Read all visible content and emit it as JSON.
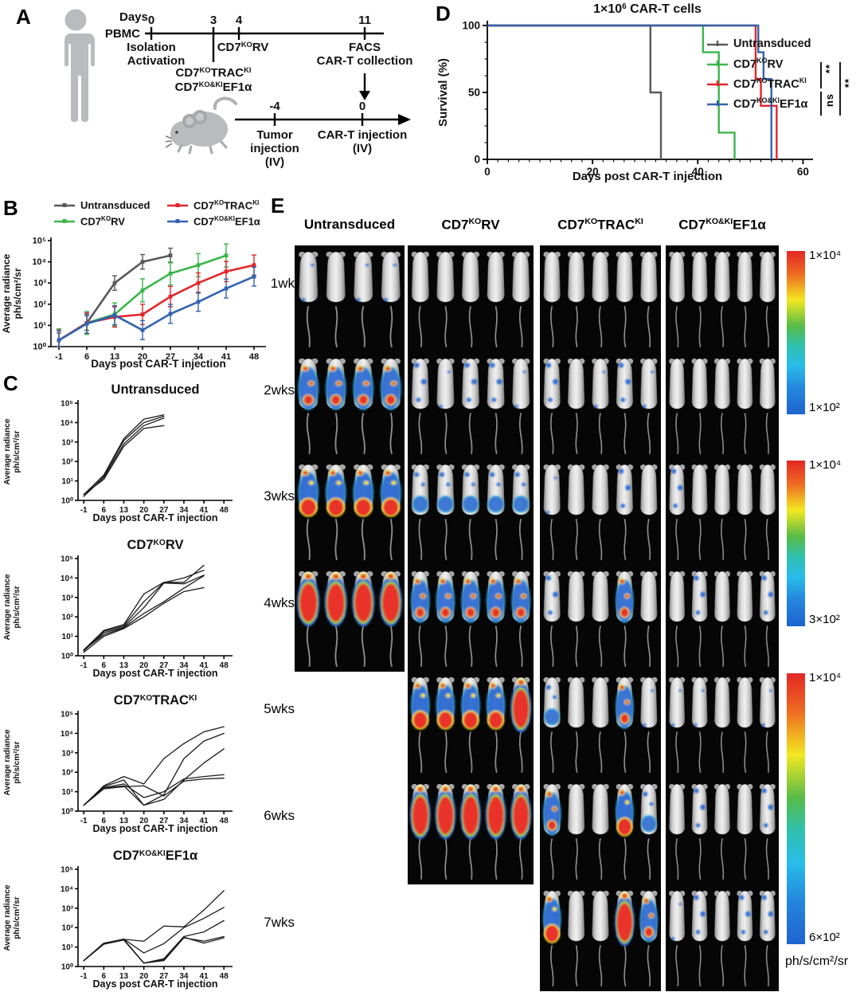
{
  "panelA": {
    "label": "A",
    "days_label": "Days",
    "pbmc_label": "PBMC",
    "timeline1_ticks": [
      "0",
      "3",
      "4",
      "11"
    ],
    "isolation": "Isolation",
    "activation": "Activation",
    "cd7korv": "CD7^{KO}RV",
    "cd7kotrac": "CD7^{KO}TRAC^{KI}",
    "cd7kokief1a": "CD7^{KO&KI}EF1α",
    "facs": "FACS",
    "cart_collection": "CAR-T collection",
    "timeline2_ticks": [
      "-4",
      "0"
    ],
    "tumor_injection": [
      "Tumor",
      "injection",
      "(IV)"
    ],
    "cart_injection": [
      "CAR-T injection",
      "(IV)"
    ]
  },
  "panelB": {
    "label": "B",
    "chart_data": {
      "type": "line",
      "x": [
        -1,
        6,
        13,
        20,
        27,
        34,
        41,
        48
      ],
      "xlabel": "Days post CAR-T injection",
      "ylabel": [
        "Average radiance",
        "ph/s/cm²/sr"
      ],
      "ylog_decades": [
        0,
        5
      ],
      "series": [
        {
          "name": "Untransduced",
          "color": "#58595b",
          "values": [
            2,
            13,
            1000,
            10000,
            20000
          ],
          "err": 2.2
        },
        {
          "name": "CD7^{KO}RV",
          "color": "#3ab54a",
          "values": [
            2,
            13,
            33,
            450,
            2800,
            7000,
            20000
          ],
          "err": 3.5
        },
        {
          "name": "CD7^{KO}TRAC^{KI}",
          "color": "#e2262c",
          "values": [
            2,
            13,
            25,
            33,
            230,
            1000,
            3500,
            7000
          ],
          "err": 3.0
        },
        {
          "name": "CD7^{KO&KI}EF1α",
          "color": "#3263af",
          "values": [
            2,
            12,
            30,
            6,
            35,
            130,
            550,
            2000
          ],
          "err": 2.8
        }
      ],
      "legend_order": [
        0,
        2,
        1,
        3
      ]
    }
  },
  "panelC": {
    "label": "C",
    "x": [
      -1,
      6,
      13,
      20,
      27,
      34,
      41,
      48
    ],
    "xlabel": "Days post CAR-T injection",
    "ylabel": [
      "Average radiance",
      "ph/s/cm²/sr"
    ],
    "ylog_decades": [
      0,
      5
    ],
    "charts": [
      {
        "title": "Untransduced",
        "traces": [
          [
            2,
            20,
            1500,
            15000,
            25000
          ],
          [
            2,
            18,
            1200,
            10000,
            21000
          ],
          [
            1.6,
            15,
            800,
            7000,
            17000
          ],
          [
            2,
            12,
            600,
            5000,
            7000
          ]
        ]
      },
      {
        "title": "CD7^{KO}RV",
        "traces": [
          [
            2,
            20,
            40,
            1500,
            6000,
            6000,
            45000
          ],
          [
            2,
            18,
            35,
            600,
            5800,
            10000,
            25000
          ],
          [
            1.8,
            15,
            30,
            300,
            5500,
            5000,
            14000
          ],
          [
            2,
            12,
            28,
            150,
            600,
            3000,
            13000
          ],
          [
            1.5,
            10,
            25,
            100,
            500,
            2000,
            3200
          ]
        ]
      },
      {
        "title": "CD7^{KO}TRAC^{KI}",
        "traces": [
          [
            2,
            20,
            60,
            25,
            500,
            3000,
            12000,
            22000
          ],
          [
            2,
            18,
            40,
            2,
            7,
            500,
            4000,
            10000
          ],
          [
            2,
            15,
            20,
            2,
            4,
            40,
            300,
            1600
          ],
          [
            2,
            16,
            25,
            5,
            10,
            45,
            60,
            75
          ],
          [
            2,
            14,
            18,
            20,
            6,
            35,
            45,
            50
          ]
        ]
      },
      {
        "title": "CD7^{KO&KI}EF1α",
        "traces": [
          [
            2,
            16,
            25,
            20,
            120,
            110,
            800,
            8000
          ],
          [
            2,
            15,
            26,
            5,
            15,
            100,
            300,
            1100
          ],
          [
            2,
            14,
            24,
            1.5,
            2.5,
            35,
            60,
            230
          ],
          [
            2,
            15,
            25,
            1.5,
            2,
            30,
            20,
            35
          ],
          [
            2,
            14,
            23,
            1.5,
            2.2,
            32,
            16,
            30
          ]
        ]
      }
    ]
  },
  "panelD": {
    "label": "D",
    "title": "1×10^{6} CAR-T cells",
    "xlabel": "Days post CAR-T injection",
    "ylabel": "Survival (%)",
    "chart_data": {
      "type": "line",
      "xticks": [
        0,
        20,
        40,
        60
      ],
      "yticks": [
        0,
        50,
        100
      ],
      "xlim": [
        0,
        61
      ],
      "ylim": [
        0,
        100
      ],
      "series": [
        {
          "name": "Untransduced",
          "color": "#58595b",
          "steps": [
            [
              0,
              100
            ],
            [
              31,
              100
            ],
            [
              31,
              50
            ],
            [
              33,
              50
            ],
            [
              33,
              0
            ]
          ]
        },
        {
          "name": "CD7^{KO}RV",
          "color": "#3ab54a",
          "steps": [
            [
              0,
              100
            ],
            [
              41,
              100
            ],
            [
              41,
              80
            ],
            [
              44,
              80
            ],
            [
              44,
              20
            ],
            [
              47,
              20
            ],
            [
              47,
              0
            ]
          ]
        },
        {
          "name": "CD7^{KO}TRAC^{KI}",
          "color": "#e2262c",
          "steps": [
            [
              0,
              100
            ],
            [
              51,
              100
            ],
            [
              51,
              60
            ],
            [
              52,
              60
            ],
            [
              52,
              40
            ],
            [
              55,
              40
            ],
            [
              55,
              0
            ]
          ]
        },
        {
          "name": "CD7^{KO&KI}EF1α",
          "color": "#3263af",
          "steps": [
            [
              0,
              100
            ],
            [
              51.5,
              100
            ],
            [
              51.5,
              80
            ],
            [
              52.5,
              80
            ],
            [
              52.5,
              60
            ],
            [
              54,
              60
            ],
            [
              54,
              0
            ]
          ]
        }
      ]
    },
    "sig": {
      "inner_top": "**",
      "inner_bottom": "ns",
      "outer": "**"
    }
  },
  "panelE": {
    "label": "E",
    "columns": [
      "Untransduced",
      "CD7^{KO}RV",
      "CD7^{KO}TRAC^{KI}",
      "CD7^{KO&KI}EF1α"
    ],
    "rows": [
      {
        "label": "1wk",
        "cells": [
          [
            1,
            0,
            1,
            1
          ],
          [
            0,
            0,
            0,
            0,
            0
          ],
          [
            0,
            0,
            0,
            0,
            0
          ],
          [
            0,
            0,
            0,
            0,
            0
          ]
        ]
      },
      {
        "label": "2wks",
        "cells": [
          [
            4,
            4,
            4,
            4
          ],
          [
            2,
            1,
            2,
            2,
            1
          ],
          [
            2,
            0,
            1,
            2,
            1
          ],
          [
            0,
            0,
            0,
            0,
            0
          ]
        ]
      },
      {
        "label": "3wks",
        "cells": [
          [
            5,
            5,
            5,
            5
          ],
          [
            3,
            3,
            3,
            3,
            3
          ],
          [
            1,
            0,
            0,
            2,
            0
          ],
          [
            2,
            0,
            0,
            0,
            0
          ]
        ]
      },
      {
        "label": "4wks",
        "cells": [
          [
            6,
            6,
            6,
            6
          ],
          [
            4,
            4,
            4,
            4,
            4
          ],
          [
            2,
            0,
            0,
            4,
            0
          ],
          [
            0,
            2,
            0,
            0,
            2
          ]
        ]
      },
      {
        "label": "5wks",
        "cells": [
          null,
          [
            5,
            5,
            5,
            5,
            6
          ],
          [
            3,
            0,
            0,
            4,
            1
          ],
          [
            1,
            1,
            0,
            0,
            1
          ]
        ]
      },
      {
        "label": "6wks",
        "cells": [
          null,
          [
            6,
            6,
            6,
            6,
            6
          ],
          [
            4,
            0,
            0,
            5,
            3
          ],
          [
            0,
            2,
            0,
            0,
            2
          ]
        ]
      },
      {
        "label": "7wks",
        "cells": [
          null,
          null,
          [
            5,
            0,
            0,
            6,
            4
          ],
          [
            1,
            2,
            0,
            2,
            2
          ]
        ]
      }
    ],
    "colorbars": [
      {
        "top": "1×10⁴",
        "bottom": "1×10²"
      },
      {
        "top": "1×10⁴",
        "bottom": "3×10²"
      },
      {
        "top": "1×10⁴",
        "bottom": "6×10²"
      }
    ],
    "unit": "ph/s/cm²/sr"
  },
  "colors": {
    "untransduced": "#58595b",
    "cd7korv": "#3ab54a",
    "cd7kotrac": "#e2262c",
    "cd7kokief1a": "#3263af",
    "imaging_background": "#060606"
  }
}
